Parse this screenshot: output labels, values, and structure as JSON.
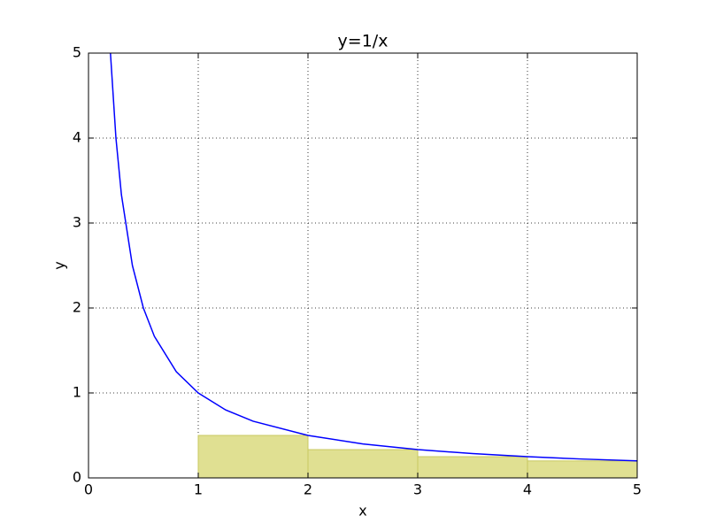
{
  "chart_data": [
    {
      "type": "line",
      "title": "y=1/x",
      "x_label": "x",
      "y_label": "y",
      "x": [
        0.2,
        0.25,
        0.3,
        0.4,
        0.5,
        0.6,
        0.8,
        1,
        1.25,
        1.5,
        2,
        2.5,
        3,
        3.5,
        4,
        4.5,
        5
      ],
      "series": [
        {
          "color": "#0000ff",
          "values": [
            5,
            4,
            3.333,
            2.5,
            2,
            1.667,
            1.25,
            1,
            0.8,
            0.667,
            0.5,
            0.4,
            0.333,
            0.286,
            0.25,
            0.222,
            0.2
          ]
        }
      ],
      "xlim": [
        0,
        5
      ],
      "ylim": [
        0,
        5
      ],
      "xticks": [
        0,
        1,
        2,
        3,
        4,
        5
      ],
      "yticks": [
        0,
        1,
        2,
        3,
        4,
        5
      ],
      "grid": true
    },
    {
      "type": "histogram",
      "bins": [
        1,
        2,
        3,
        4,
        5
      ],
      "values": [
        0.5,
        0.333,
        0.25,
        0.2
      ],
      "color": "#e0e092"
    }
  ]
}
